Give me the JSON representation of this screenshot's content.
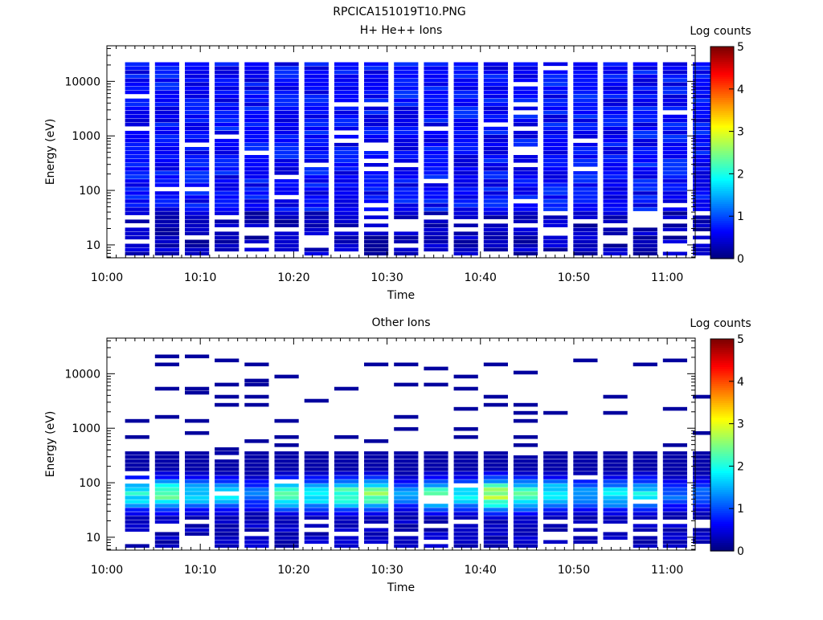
{
  "figure_title": "RPCICA151019T10.PNG",
  "chart_data": [
    {
      "type": "heatmap",
      "title": "H+ He++ Ions",
      "xlabel": "Time",
      "ylabel": "Energy (eV)",
      "y_scale": "log",
      "ylim": [
        5.8,
        45000
      ],
      "xlim": [
        "10:00",
        "11:03"
      ],
      "xticks": [
        "10:00",
        "10:10",
        "10:20",
        "10:30",
        "10:40",
        "10:50",
        "11:00"
      ],
      "yticks": [
        "10",
        "100",
        "1000",
        "10000"
      ],
      "colorbar": {
        "label": "Log counts",
        "min": 0,
        "max": 5,
        "ticks": [
          "0",
          "1",
          "2",
          "3",
          "4",
          "5"
        ],
        "colormap": "jet"
      },
      "time_bins_start": [
        "10:01.6",
        "10:04.8",
        "10:08.0",
        "10:11.2",
        "10:14.4",
        "10:17.6",
        "10:20.8",
        "10:24.0",
        "10:27.2",
        "10:30.4",
        "10:33.6",
        "10:36.8",
        "10:40.0",
        "10:43.2",
        "10:46.4",
        "10:49.6",
        "10:52.8",
        "10:56.0",
        "10:59.2",
        "11:02.4"
      ],
      "energy_summary": [
        {
          "band": "7–40 eV",
          "log_counts": 0.3
        },
        {
          "band": "40–200 eV",
          "log_counts": 0.5
        },
        {
          "band": "200–45000 eV",
          "log_counts": 0.6
        }
      ]
    },
    {
      "type": "heatmap",
      "title": "Other Ions",
      "xlabel": "Time",
      "ylabel": "Energy (eV)",
      "y_scale": "log",
      "ylim": [
        5.8,
        45000
      ],
      "xlim": [
        "10:00",
        "11:03"
      ],
      "xticks": [
        "10:00",
        "10:10",
        "10:20",
        "10:30",
        "10:40",
        "10:50",
        "11:00"
      ],
      "yticks": [
        "10",
        "100",
        "1000",
        "10000"
      ],
      "colorbar": {
        "label": "Log counts",
        "min": 0,
        "max": 5,
        "ticks": [
          "0",
          "1",
          "2",
          "3",
          "4",
          "5"
        ],
        "colormap": "jet"
      },
      "time_bins_start": [
        "10:01.6",
        "10:04.8",
        "10:08.0",
        "10:11.2",
        "10:14.4",
        "10:17.6",
        "10:20.8",
        "10:24.0",
        "10:27.2",
        "10:30.4",
        "10:33.6",
        "10:36.8",
        "10:40.0",
        "10:43.2",
        "10:46.4",
        "10:49.6",
        "10:52.8",
        "10:56.0",
        "10:59.2",
        "11:02.4"
      ],
      "peak_log_counts_per_bin": [
        2.2,
        2.7,
        2.0,
        2.0,
        1.3,
        2.5,
        2.2,
        2.6,
        2.7,
        1.5,
        2.4,
        2.2,
        3.2,
        2.6,
        2.2,
        1.7,
        2.0,
        2.2,
        1.3,
        1.3
      ],
      "peak_energy_eV": 60
    }
  ]
}
